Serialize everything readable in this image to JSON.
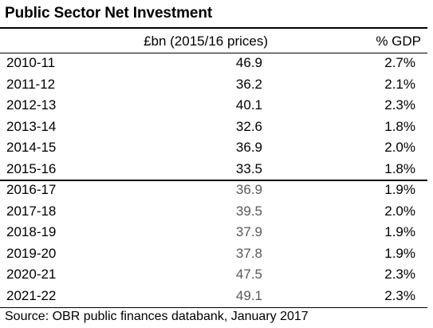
{
  "title": "Public Sector Net Investment",
  "headers": {
    "value": "£bn (2015/16 prices)",
    "gdp": "% GDP"
  },
  "rows": [
    {
      "year": "2010-11",
      "value": "46.9",
      "gdp": "2.7%"
    },
    {
      "year": "2011-12",
      "value": "36.2",
      "gdp": "2.1%"
    },
    {
      "year": "2012-13",
      "value": "40.1",
      "gdp": "2.3%"
    },
    {
      "year": "2013-14",
      "value": "32.6",
      "gdp": "1.8%"
    },
    {
      "year": "2014-15",
      "value": "36.9",
      "gdp": "2.0%"
    },
    {
      "year": "2015-16",
      "value": "33.5",
      "gdp": "1.8%"
    },
    {
      "year": "2016-17",
      "value": "36.9",
      "gdp": "1.9%"
    },
    {
      "year": "2017-18",
      "value": "39.5",
      "gdp": "2.0%"
    },
    {
      "year": "2018-19",
      "value": "37.9",
      "gdp": "1.9%"
    },
    {
      "year": "2019-20",
      "value": "37.8",
      "gdp": "1.9%"
    },
    {
      "year": "2020-21",
      "value": "47.5",
      "gdp": "2.3%"
    },
    {
      "year": "2021-22",
      "value": "49.1",
      "gdp": "2.3%"
    }
  ],
  "source": "Source: OBR public finances databank, January 2017",
  "colors": {
    "outturn_value": "#000000",
    "forecast_value": "#595959"
  }
}
